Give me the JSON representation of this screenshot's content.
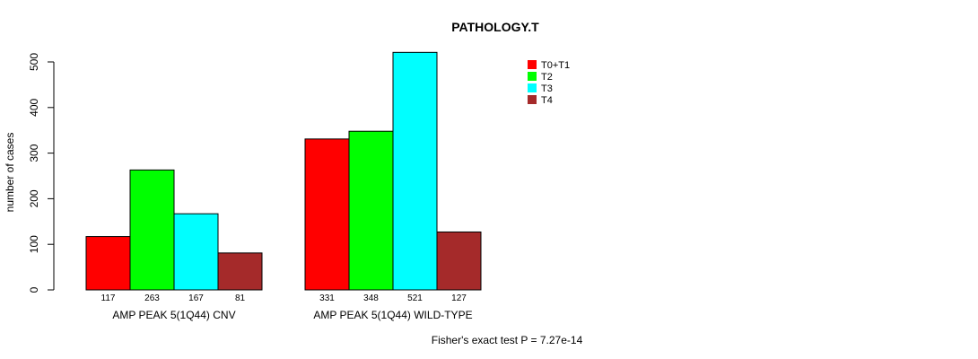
{
  "chart_data": {
    "type": "bar",
    "title": "PATHOLOGY.T",
    "ylabel": "number of cases",
    "ylim": [
      0,
      500
    ],
    "yticks": [
      0,
      100,
      200,
      300,
      400,
      500
    ],
    "groups": [
      "AMP PEAK  5(1Q44) CNV",
      "AMP PEAK  5(1Q44) WILD-TYPE"
    ],
    "series": [
      {
        "name": "T0+T1",
        "color": "#ff0000",
        "values": [
          117,
          331
        ]
      },
      {
        "name": "T2",
        "color": "#00ff00",
        "values": [
          263,
          348
        ]
      },
      {
        "name": "T3",
        "color": "#00ffff",
        "values": [
          167,
          521
        ]
      },
      {
        "name": "T4",
        "color": "#a52a2a",
        "values": [
          81,
          127
        ]
      }
    ],
    "legend_position": "top-right",
    "footnote": "Fisher's exact test P = 7.27e-14"
  }
}
